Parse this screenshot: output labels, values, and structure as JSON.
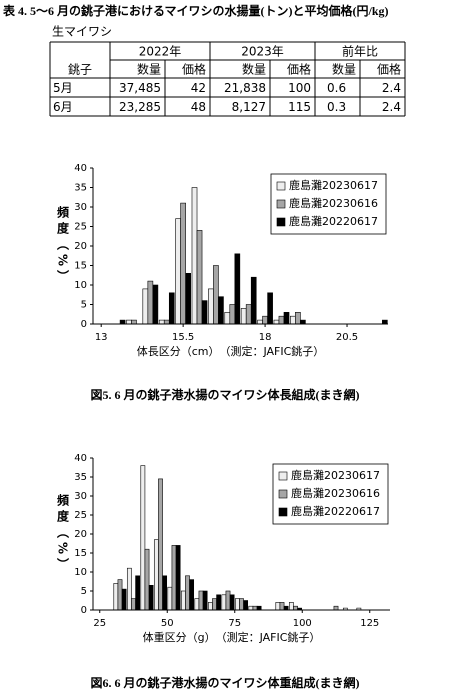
{
  "table": {
    "title": "表 4. 5〜6 月の銚子港におけるマイワシの水揚量(トン)と平均価格(円/kg)",
    "subtitle": "生マイワシ",
    "header": [
      "2022年",
      "2023年",
      "前年比"
    ],
    "row_header": "銚子",
    "subheader": [
      "数量",
      "価格",
      "数量",
      "価格",
      "数量",
      "価格"
    ],
    "rows": [
      [
        "5月",
        "37,485",
        "42",
        "21,838",
        "100",
        "0.6",
        "2.4"
      ],
      [
        "6月",
        "23,285",
        "48",
        "8,127",
        "115",
        "0.3",
        "2.4"
      ]
    ]
  },
  "chart_data": [
    {
      "type": "bar",
      "caption": "図5.  6 月の銚子港水揚のマイワシ体長組成(まき網)",
      "xlabel": "体長区分（cm）　（測定：JAFIC銚子）",
      "ylabel": "頻度（%）",
      "x": [
        13.5,
        14,
        14.5,
        15,
        15.5,
        16,
        16.5,
        17,
        17.5,
        18,
        18.5,
        19,
        19.5,
        20,
        20.5,
        21,
        21.5
      ],
      "series": [
        {
          "name": "鹿島灘20230617",
          "color": "#eeeeee",
          "values": [
            0,
            1,
            9,
            1,
            27,
            35,
            9,
            3,
            4,
            1,
            1,
            2,
            0,
            0,
            0,
            0,
            0
          ]
        },
        {
          "name": "鹿島灘20230616",
          "color": "#a6a6a6",
          "values": [
            0,
            1,
            11,
            1,
            31,
            24,
            15,
            5,
            5,
            2,
            2,
            3,
            0,
            0,
            0,
            0,
            0
          ]
        },
        {
          "name": "鹿島灘20220617",
          "color": "#000000",
          "values": [
            1,
            0,
            10,
            8,
            13,
            6,
            7,
            18,
            12,
            8,
            3,
            1,
            0,
            0,
            0,
            0,
            1
          ]
        }
      ],
      "xlim": [
        12.75,
        21.75
      ],
      "xticks": [
        13,
        15.5,
        18,
        20.5
      ],
      "ylim": [
        0,
        40
      ],
      "yticks": [
        0,
        5,
        10,
        15,
        20,
        25,
        30,
        35,
        40
      ],
      "legend": "upper right"
    },
    {
      "type": "bar",
      "caption": "図6. 6 月の銚子港水揚のマイワシ体重組成(まき網)",
      "xlabel": "体重区分（g）　（測定：JAFIC銚子）",
      "ylabel": "頻度（%）",
      "x": [
        32.5,
        37.5,
        42.5,
        47.5,
        52.5,
        57.5,
        62.5,
        67.5,
        72.5,
        77.5,
        82.5,
        87.5,
        92.5,
        97.5,
        102.5,
        107.5,
        112.5,
        117.5,
        122.5
      ],
      "series": [
        {
          "name": "鹿島灘20230617",
          "color": "#eeeeee",
          "values": [
            7,
            11,
            38,
            18.5,
            6,
            5,
            3,
            2,
            4,
            3,
            1,
            0,
            2,
            2,
            0,
            0,
            0,
            0.5,
            0.5
          ]
        },
        {
          "name": "鹿島灘20230616",
          "color": "#a6a6a6",
          "values": [
            8,
            3,
            16,
            34.5,
            17,
            9,
            5,
            3,
            5,
            3,
            1,
            0,
            2,
            1,
            0,
            0,
            1,
            0,
            0
          ]
        },
        {
          "name": "鹿島灘20220617",
          "color": "#000000",
          "values": [
            5.5,
            9,
            6.5,
            9,
            17,
            8,
            5,
            4,
            4,
            2.5,
            1,
            0,
            1,
            0.5,
            0,
            0,
            0,
            0,
            0
          ]
        }
      ],
      "xlim": [
        22.5,
        132.5
      ],
      "xticks": [
        25,
        50,
        75,
        100,
        125
      ],
      "ylim": [
        0,
        40
      ],
      "yticks": [
        0,
        5,
        10,
        15,
        20,
        25,
        30,
        35,
        40
      ],
      "legend": "upper right"
    }
  ]
}
